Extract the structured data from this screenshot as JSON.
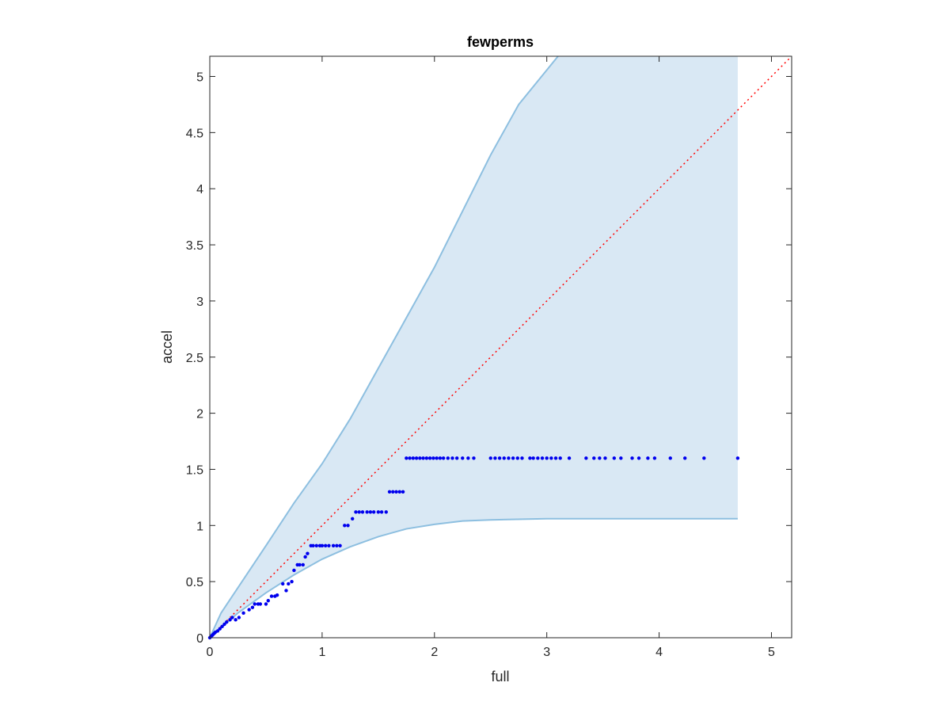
{
  "chart_data": {
    "type": "scatter",
    "title": "fewperms",
    "xlabel": "full",
    "ylabel": "accel",
    "xlim": [
      0,
      5.18
    ],
    "ylim": [
      0,
      5.18
    ],
    "x_ticks": [
      0,
      1,
      2,
      3,
      4,
      5
    ],
    "y_ticks": [
      0,
      0.5,
      1,
      1.5,
      2,
      2.5,
      3,
      3.5,
      4,
      4.5,
      5
    ],
    "grid": false,
    "colors": {
      "points": "#0000ee",
      "band_fill": "#d9e8f4",
      "band_edge": "#8dbfe0",
      "reference_line": "#ff0000",
      "axes": "#262626"
    },
    "band": {
      "upper": [
        [
          0,
          0
        ],
        [
          0.1,
          0.22
        ],
        [
          0.3,
          0.52
        ],
        [
          0.5,
          0.82
        ],
        [
          0.75,
          1.2
        ],
        [
          1.0,
          1.55
        ],
        [
          1.25,
          1.95
        ],
        [
          1.5,
          2.4
        ],
        [
          1.75,
          2.85
        ],
        [
          2.0,
          3.3
        ],
        [
          2.25,
          3.8
        ],
        [
          2.5,
          4.3
        ],
        [
          2.75,
          4.75
        ],
        [
          3.1,
          5.18
        ]
      ],
      "upper_top_x": [
        3.1,
        4.7
      ],
      "lower": [
        [
          0,
          0
        ],
        [
          0.25,
          0.22
        ],
        [
          0.5,
          0.4
        ],
        [
          0.75,
          0.56
        ],
        [
          1.0,
          0.7
        ],
        [
          1.25,
          0.81
        ],
        [
          1.5,
          0.9
        ],
        [
          1.75,
          0.97
        ],
        [
          2.0,
          1.01
        ],
        [
          2.25,
          1.04
        ],
        [
          2.5,
          1.05
        ],
        [
          3.0,
          1.06
        ],
        [
          4.7,
          1.06
        ]
      ],
      "x_end": 4.7
    },
    "reference_line": {
      "from": [
        0,
        0
      ],
      "to": [
        5.18,
        5.18
      ],
      "style": "dotted"
    },
    "points": [
      [
        0,
        0
      ],
      [
        0.01,
        0.01
      ],
      [
        0.02,
        0.02
      ],
      [
        0.03,
        0.03
      ],
      [
        0.04,
        0.04
      ],
      [
        0.05,
        0.05
      ],
      [
        0.07,
        0.06
      ],
      [
        0.09,
        0.08
      ],
      [
        0.11,
        0.1
      ],
      [
        0.13,
        0.12
      ],
      [
        0.15,
        0.14
      ],
      [
        0.18,
        0.16
      ],
      [
        0.2,
        0.18
      ],
      [
        0.23,
        0.16
      ],
      [
        0.26,
        0.18
      ],
      [
        0.3,
        0.22
      ],
      [
        0.35,
        0.25
      ],
      [
        0.38,
        0.27
      ],
      [
        0.4,
        0.3
      ],
      [
        0.43,
        0.3
      ],
      [
        0.45,
        0.3
      ],
      [
        0.5,
        0.3
      ],
      [
        0.52,
        0.33
      ],
      [
        0.55,
        0.37
      ],
      [
        0.58,
        0.37
      ],
      [
        0.6,
        0.38
      ],
      [
        0.65,
        0.48
      ],
      [
        0.68,
        0.42
      ],
      [
        0.7,
        0.48
      ],
      [
        0.73,
        0.5
      ],
      [
        0.75,
        0.6
      ],
      [
        0.78,
        0.65
      ],
      [
        0.8,
        0.65
      ],
      [
        0.83,
        0.65
      ],
      [
        0.85,
        0.72
      ],
      [
        0.87,
        0.75
      ],
      [
        0.9,
        0.82
      ],
      [
        0.92,
        0.82
      ],
      [
        0.95,
        0.82
      ],
      [
        0.98,
        0.82
      ],
      [
        1.0,
        0.82
      ],
      [
        1.03,
        0.82
      ],
      [
        1.06,
        0.82
      ],
      [
        1.1,
        0.82
      ],
      [
        1.13,
        0.82
      ],
      [
        1.16,
        0.82
      ],
      [
        1.2,
        1.0
      ],
      [
        1.23,
        1.0
      ],
      [
        1.27,
        1.06
      ],
      [
        1.3,
        1.12
      ],
      [
        1.33,
        1.12
      ],
      [
        1.36,
        1.12
      ],
      [
        1.4,
        1.12
      ],
      [
        1.43,
        1.12
      ],
      [
        1.46,
        1.12
      ],
      [
        1.5,
        1.12
      ],
      [
        1.53,
        1.12
      ],
      [
        1.57,
        1.12
      ],
      [
        1.6,
        1.3
      ],
      [
        1.63,
        1.3
      ],
      [
        1.66,
        1.3
      ],
      [
        1.69,
        1.3
      ],
      [
        1.72,
        1.3
      ],
      [
        1.75,
        1.6
      ],
      [
        1.78,
        1.6
      ],
      [
        1.81,
        1.6
      ],
      [
        1.84,
        1.6
      ],
      [
        1.87,
        1.6
      ],
      [
        1.9,
        1.6
      ],
      [
        1.93,
        1.6
      ],
      [
        1.96,
        1.6
      ],
      [
        1.99,
        1.6
      ],
      [
        2.02,
        1.6
      ],
      [
        2.05,
        1.6
      ],
      [
        2.08,
        1.6
      ],
      [
        2.12,
        1.6
      ],
      [
        2.16,
        1.6
      ],
      [
        2.2,
        1.6
      ],
      [
        2.25,
        1.6
      ],
      [
        2.3,
        1.6
      ],
      [
        2.35,
        1.6
      ],
      [
        2.5,
        1.6
      ],
      [
        2.54,
        1.6
      ],
      [
        2.58,
        1.6
      ],
      [
        2.62,
        1.6
      ],
      [
        2.66,
        1.6
      ],
      [
        2.7,
        1.6
      ],
      [
        2.74,
        1.6
      ],
      [
        2.78,
        1.6
      ],
      [
        2.85,
        1.6
      ],
      [
        2.88,
        1.6
      ],
      [
        2.92,
        1.6
      ],
      [
        2.96,
        1.6
      ],
      [
        3.0,
        1.6
      ],
      [
        3.04,
        1.6
      ],
      [
        3.08,
        1.6
      ],
      [
        3.12,
        1.6
      ],
      [
        3.2,
        1.6
      ],
      [
        3.35,
        1.6
      ],
      [
        3.42,
        1.6
      ],
      [
        3.47,
        1.6
      ],
      [
        3.52,
        1.6
      ],
      [
        3.6,
        1.6
      ],
      [
        3.66,
        1.6
      ],
      [
        3.76,
        1.6
      ],
      [
        3.82,
        1.6
      ],
      [
        3.9,
        1.6
      ],
      [
        3.96,
        1.6
      ],
      [
        4.1,
        1.6
      ],
      [
        4.23,
        1.6
      ],
      [
        4.4,
        1.6
      ],
      [
        4.7,
        1.6
      ]
    ]
  }
}
